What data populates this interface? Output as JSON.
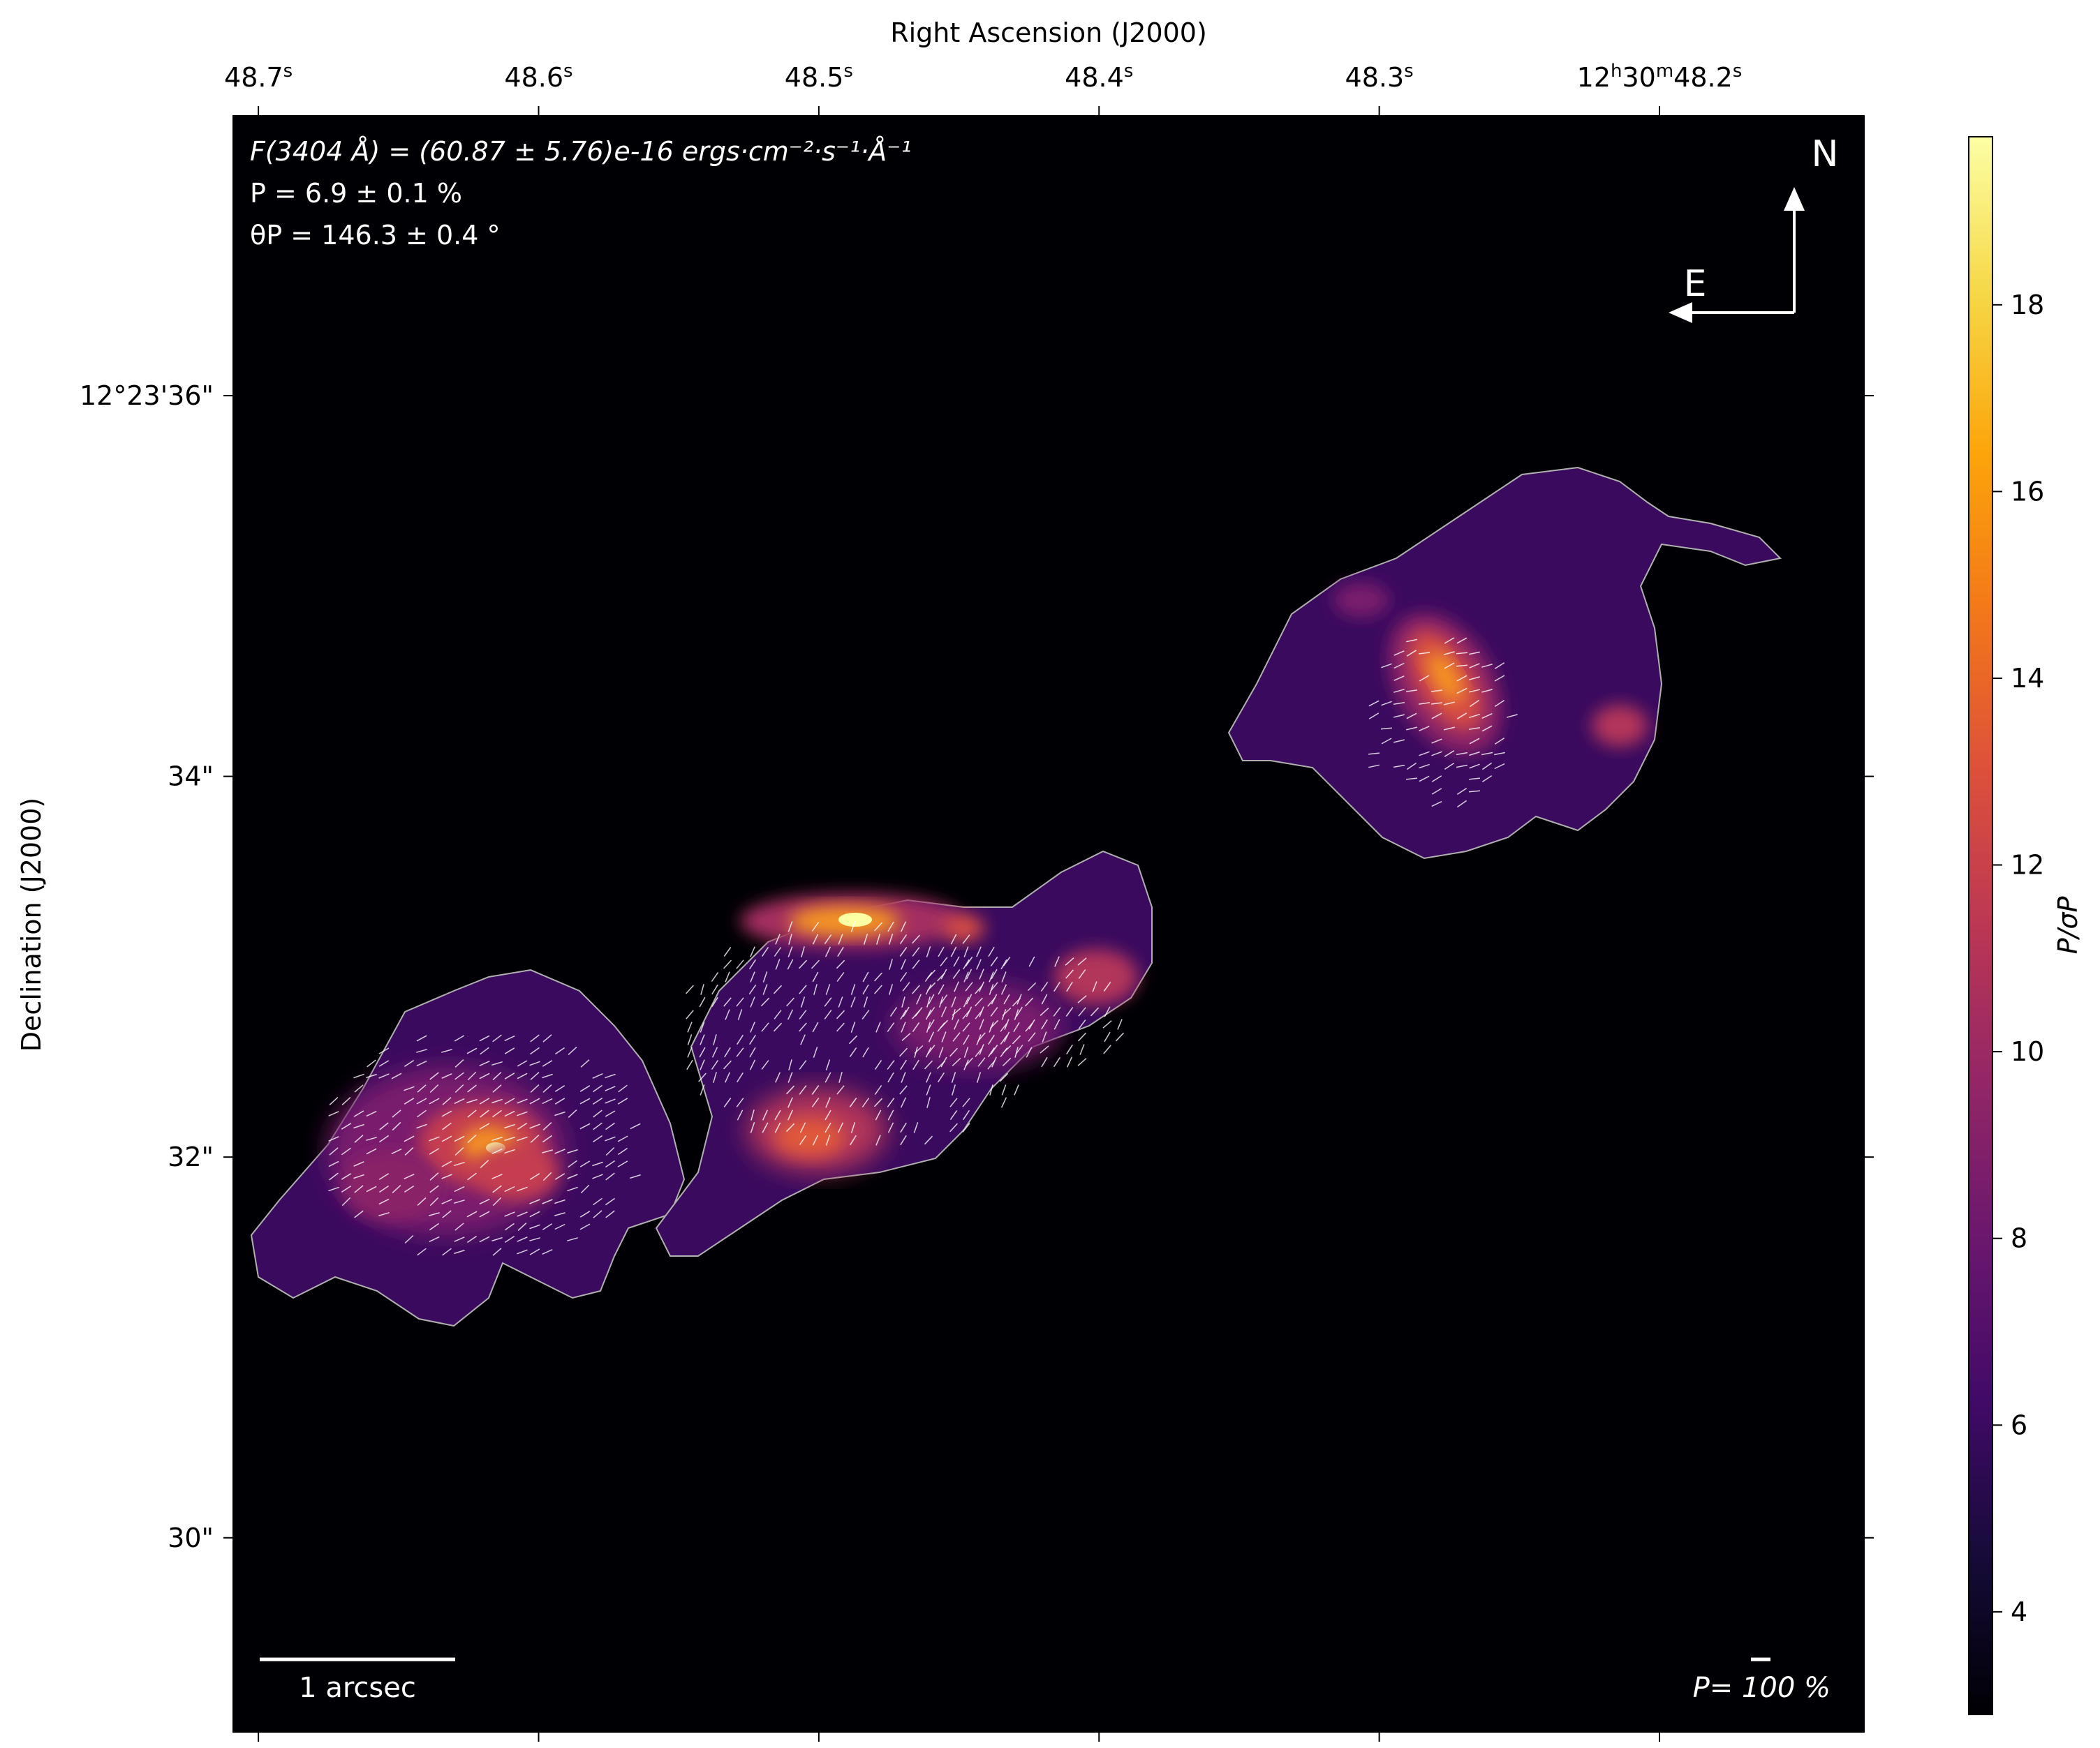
{
  "chart_data": {
    "type": "heatmap",
    "title": "",
    "xlabel": "Right Ascension (J2000)",
    "ylabel": "Declination (J2000)",
    "x_ticks": [
      {
        "label": "48.7",
        "sup": "s",
        "prefix": "",
        "value": 48.7
      },
      {
        "label": "48.6",
        "sup": "s",
        "prefix": "",
        "value": 48.6
      },
      {
        "label": "48.5",
        "sup": "s",
        "prefix": "",
        "value": 48.5
      },
      {
        "label": "48.4",
        "sup": "s",
        "prefix": "",
        "value": 48.4
      },
      {
        "label": "48.3",
        "sup": "s",
        "prefix": "",
        "value": 48.3
      },
      {
        "label": "48.2",
        "sup": "s",
        "prefix": "12h30m",
        "value": 48.2
      }
    ],
    "y_ticks": [
      {
        "label": "12°23'36\"",
        "value": 36
      },
      {
        "label": "34\"",
        "value": 34
      },
      {
        "label": "32\"",
        "value": 32
      },
      {
        "label": "30\"",
        "value": 30
      }
    ],
    "xlim": [
      48.709,
      48.127
    ],
    "ylim": [
      28.98,
      37.47
    ],
    "colorbar": {
      "label": "P/σP",
      "colormap": "inferno",
      "range": [
        2.9,
        19.8
      ],
      "ticks": [
        4,
        6,
        8,
        10,
        12,
        14,
        16,
        18
      ]
    },
    "annotations": {
      "flux_line": "F(3404 Å) = (60.87 ± 5.76)e-16 ergs·cm⁻²·s⁻¹·Å⁻¹",
      "pol_line": "P = 6.9 ± 0.1 %",
      "angle_line": "θP = 146.3 ± 0.4 °",
      "north": "N",
      "east": "E",
      "scalebar_label": "1 arcsec",
      "vector_scale_label": "P= 100 %"
    },
    "grid": false,
    "colors": {
      "background": "#000004",
      "contour": "#aaaaaa",
      "vectors": "#ffffff"
    }
  }
}
